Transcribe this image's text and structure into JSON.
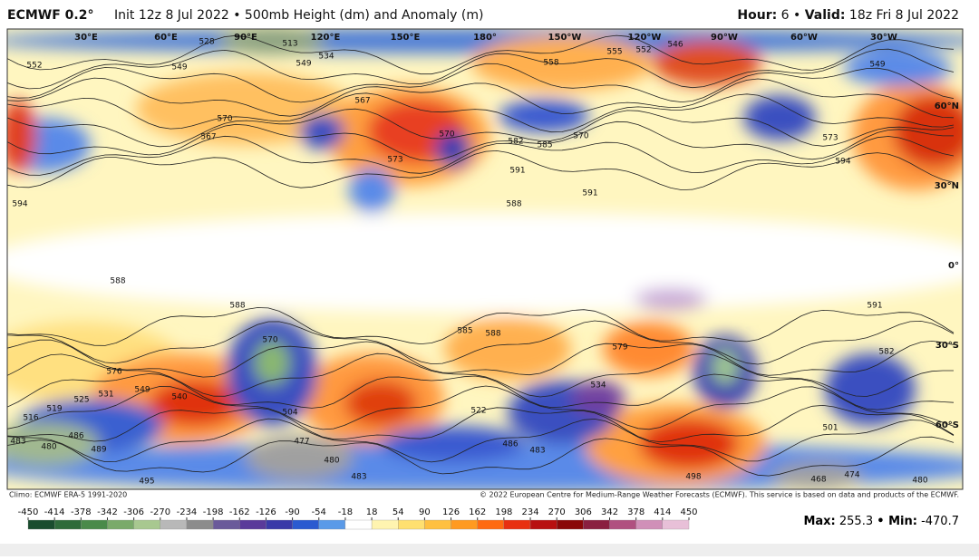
{
  "header": {
    "model": "ECMWF 0.2°",
    "description": "Init 12z 8 Jul 2022 • 500mb Height (dm) and Anomaly (m)",
    "hour_label": "Hour:",
    "hour": "6 •",
    "valid_label": "Valid:",
    "valid": "18z Fri 8 Jul 2022"
  },
  "map": {
    "longitude_labels": [
      "30°E",
      "60°E",
      "90°E",
      "120°E",
      "150°E",
      "180°",
      "150°W",
      "120°W",
      "90°W",
      "60°W",
      "30°W"
    ],
    "latitude_labels": [
      "60°N",
      "30°N",
      "0°",
      "30°S",
      "60°S"
    ],
    "contour_labels": [
      552,
      549,
      528,
      513,
      534,
      549,
      570,
      567,
      567,
      570,
      573,
      558,
      555,
      552,
      546,
      549,
      582,
      585,
      591,
      591,
      588,
      594,
      594,
      588,
      588,
      585,
      588,
      591,
      582,
      576,
      549,
      540,
      531,
      525,
      519,
      516,
      483,
      480,
      486,
      489,
      495,
      570,
      504,
      477,
      480,
      483,
      522,
      486,
      483,
      534,
      501,
      498,
      468,
      474,
      480,
      579,
      573,
      570
    ]
  },
  "footer": {
    "climo": "Climo: ECMWF ERA-5 1991-2020",
    "copyright": "© 2022 European Centre for Medium-Range Weather Forecasts (ECMWF). This service is based on data and products of the ECMWF.",
    "max_label": "Max:",
    "max": 255.3,
    "min_label": "• Min:",
    "min": -470.7
  },
  "colorbar": {
    "ticks": [
      -450,
      -414,
      -378,
      -342,
      -306,
      -270,
      -234,
      -198,
      -162,
      -126,
      -90,
      -54,
      -18,
      18,
      54,
      90,
      126,
      162,
      198,
      234,
      270,
      306,
      342,
      378,
      414,
      450
    ],
    "colors": [
      "#1a4d2e",
      "#2e6b3a",
      "#4a8a4a",
      "#7aaa6a",
      "#a8c890",
      "#b8b8b8",
      "#8c8c8c",
      "#6a5a9a",
      "#5a3a9a",
      "#3a3aa8",
      "#2a5ad0",
      "#5a9ae8",
      "#ffffff",
      "#fff4b0",
      "#ffe070",
      "#ffc040",
      "#ff9a20",
      "#ff6a10",
      "#e83010",
      "#b81010",
      "#8a0808",
      "#8a2040",
      "#b05080",
      "#d090b8",
      "#e8c0d8"
    ]
  }
}
